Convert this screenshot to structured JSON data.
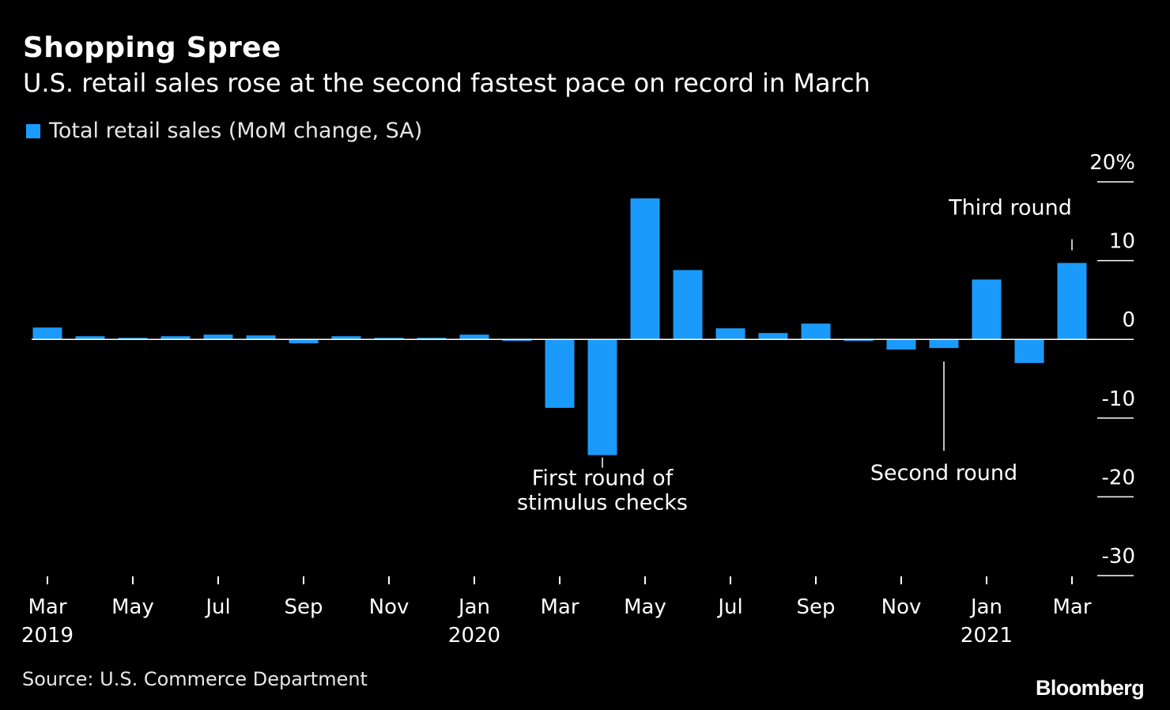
{
  "header": {
    "title": "Shopping Spree",
    "subtitle": "U.S. retail sales rose at the second fastest pace on record in March"
  },
  "legend": {
    "label": "Total retail sales (MoM change, SA)"
  },
  "footer": {
    "source": "Source: U.S. Commerce Department",
    "brand": "Bloomberg"
  },
  "colors": {
    "bar": "#1a9bfc",
    "background": "#000000",
    "text": "#ffffff"
  },
  "chart_data": {
    "type": "bar",
    "categories": [
      "Mar 2019",
      "Apr 2019",
      "May 2019",
      "Jun 2019",
      "Jul 2019",
      "Aug 2019",
      "Sep 2019",
      "Oct 2019",
      "Nov 2019",
      "Dec 2019",
      "Jan 2020",
      "Feb 2020",
      "Mar 2020",
      "Apr 2020",
      "May 2020",
      "Jun 2020",
      "Jul 2020",
      "Aug 2020",
      "Sep 2020",
      "Oct 2020",
      "Nov 2020",
      "Dec 2020",
      "Jan 2021",
      "Feb 2021",
      "Mar 2021"
    ],
    "series": [
      {
        "name": "Total retail sales (MoM change, SA)",
        "values": [
          1.5,
          0.4,
          0.2,
          0.4,
          0.6,
          0.5,
          -0.5,
          0.4,
          0.2,
          0.2,
          0.6,
          -0.2,
          -8.7,
          -14.7,
          17.9,
          8.8,
          1.4,
          0.8,
          2.0,
          -0.2,
          -1.3,
          -1.1,
          7.6,
          -3.0,
          9.7
        ]
      }
    ],
    "ylim": [
      -30,
      20
    ],
    "y_ticks": [
      20,
      10,
      0,
      -10,
      -20,
      -30
    ],
    "y_tick_labels": [
      "20%",
      "10",
      "0",
      "-10",
      "-20",
      "-30"
    ],
    "y_axis_position": "right",
    "x_ticks": [
      {
        "index": 0,
        "label": "Mar",
        "year": "2019"
      },
      {
        "index": 2,
        "label": "May",
        "year": ""
      },
      {
        "index": 4,
        "label": "Jul",
        "year": ""
      },
      {
        "index": 6,
        "label": "Sep",
        "year": ""
      },
      {
        "index": 8,
        "label": "Nov",
        "year": ""
      },
      {
        "index": 10,
        "label": "Jan",
        "year": "2020"
      },
      {
        "index": 12,
        "label": "Mar",
        "year": ""
      },
      {
        "index": 14,
        "label": "May",
        "year": ""
      },
      {
        "index": 16,
        "label": "Jul",
        "year": ""
      },
      {
        "index": 18,
        "label": "Sep",
        "year": ""
      },
      {
        "index": 20,
        "label": "Nov",
        "year": ""
      },
      {
        "index": 22,
        "label": "Jan",
        "year": "2021"
      },
      {
        "index": 24,
        "label": "Mar",
        "year": ""
      }
    ],
    "annotations": [
      {
        "index": 13,
        "lines": [
          "First round of",
          "stimulus checks"
        ],
        "position": "below"
      },
      {
        "index": 21,
        "lines": [
          "Second round"
        ],
        "position": "below"
      },
      {
        "index": 24,
        "lines": [
          "Third round"
        ],
        "position": "above"
      }
    ],
    "grid": false,
    "legend_position": "top-left"
  }
}
